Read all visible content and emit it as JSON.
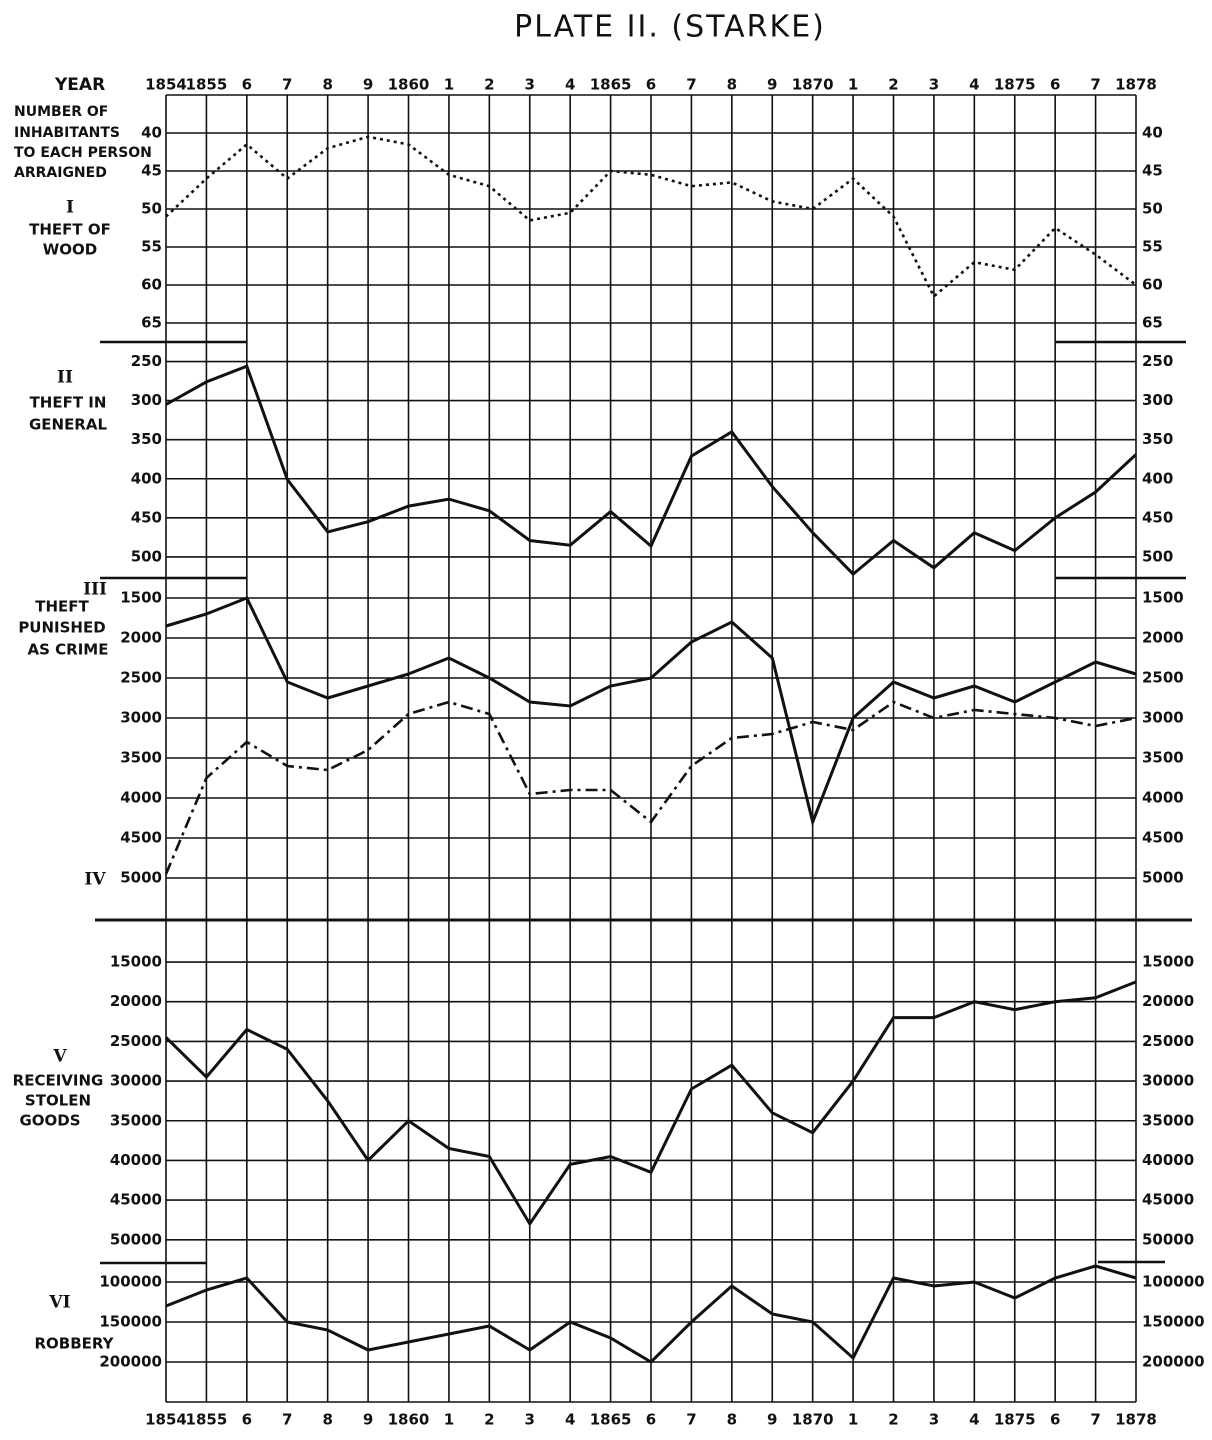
{
  "chart_data": {
    "type": "line",
    "title": "PLATE II. (STARKE)",
    "x_label": "YEAR",
    "y_label": [
      "NUMBER OF",
      "INHABITANTS",
      "TO EACH PERSON",
      "ARRAIGNED"
    ],
    "categories": [
      "1854",
      "1855",
      "6",
      "7",
      "8",
      "9",
      "1860",
      "1",
      "2",
      "3",
      "4",
      "1865",
      "6",
      "7",
      "8",
      "9",
      "1870",
      "1",
      "2",
      "3",
      "4",
      "1875",
      "6",
      "7",
      "1878"
    ],
    "panels": [
      {
        "caption": [
          "THEFT OF",
          "WOOD"
        ],
        "ylim": [
          35,
          67.5
        ],
        "yticks": [
          40,
          45,
          50,
          55,
          60,
          65
        ],
        "series": [
          {
            "name": "I",
            "color": "#111111",
            "dash": "dotted",
            "values": [
              51,
              46,
              41.5,
              46,
              42,
              40.5,
              41.5,
              45.5,
              47,
              51.5,
              50.5,
              45,
              45.5,
              47,
              46.5,
              49,
              50,
              46,
              51,
              61.5,
              57,
              58,
              52.5,
              56,
              60
            ]
          }
        ]
      },
      {
        "caption": [
          "THEFT IN",
          "GENERAL"
        ],
        "ylim": [
          225,
          527
        ],
        "yticks": [
          250,
          300,
          350,
          400,
          450,
          500
        ],
        "series": [
          {
            "name": "II",
            "color": "#111111",
            "dash": "solid",
            "values": [
              305,
              276,
              256,
              401,
              468,
              455,
              435,
              426,
              441,
              479,
              485,
              442,
              486,
              371,
              340,
              410,
              469,
              522,
              479,
              514,
              469,
              492,
              450,
              417,
              369
            ]
          }
        ]
      },
      {
        "caption": [
          "THEFT",
          "PUNISHED",
          "AS CRIME"
        ],
        "ylim": [
          1250,
          5525
        ],
        "yticks": [
          1500,
          2000,
          2500,
          3000,
          3500,
          4000,
          4500,
          5000
        ],
        "series": [
          {
            "name": "III",
            "color": "#111111",
            "dash": "solid",
            "values": [
              1850,
              1700,
              1500,
              2550,
              2750,
              2600,
              2450,
              2250,
              2500,
              2800,
              2850,
              2600,
              2500,
              2050,
              1800,
              2250,
              4300,
              3000,
              2550,
              2750,
              2600,
              2800,
              2550,
              2300,
              2450
            ]
          },
          {
            "name": "IV",
            "color": "#111111",
            "dash": "dash-dot",
            "values": [
              4950,
              3750,
              3300,
              3600,
              3650,
              3400,
              2950,
              2800,
              2950,
              3950,
              3900,
              3900,
              4300,
              3600,
              3250,
              3200,
              3050,
              3150,
              2800,
              3000,
              2900,
              2950,
              3000,
              3100,
              3000
            ]
          }
        ]
      },
      {
        "caption": [
          "RECEIVING",
          "STOLEN",
          "GOODS"
        ],
        "ylim": [
          9700,
          52800
        ],
        "yticks": [
          15000,
          20000,
          25000,
          30000,
          35000,
          40000,
          45000,
          50000
        ],
        "series": [
          {
            "name": "V",
            "color": "#111111",
            "dash": "solid",
            "values": [
              24500,
              29500,
              23500,
              26000,
              32500,
              40000,
              35000,
              38500,
              39500,
              48000,
              40500,
              39500,
              41500,
              31000,
              28000,
              34000,
              36500,
              30000,
              22000,
              22000,
              20000,
              21000,
              20000,
              19500,
              17500
            ]
          }
        ]
      },
      {
        "caption": [
          "ROBBERY"
        ],
        "ylim": [
          75000,
          250000
        ],
        "yticks": [
          100000,
          150000,
          200000
        ],
        "series": [
          {
            "name": "VI",
            "color": "#111111",
            "dash": "solid",
            "values": [
              130000,
              110000,
              95000,
              150000,
              160000,
              185000,
              175000,
              165000,
              155000,
              185000,
              150000,
              170000,
              200000,
              150000,
              105000,
              140000,
              150000,
              195000,
              95000,
              105000,
              100000,
              120000,
              95000,
              80000,
              95000
            ]
          }
        ]
      }
    ]
  }
}
